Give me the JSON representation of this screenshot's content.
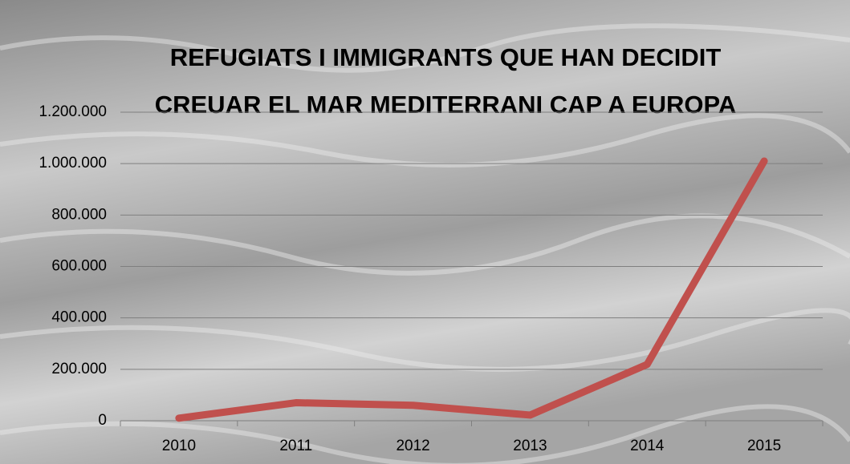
{
  "chart_data": {
    "type": "line",
    "title": [
      "REFUGIATS I IMMIGRANTS QUE HAN DECIDIT",
      "CREUAR EL MAR  MEDITERRANI CAP A EUROPA"
    ],
    "categories": [
      "2010",
      "2011",
      "2012",
      "2013",
      "2014",
      "2015"
    ],
    "values": [
      10000,
      70000,
      60000,
      22000,
      219000,
      1010000
    ],
    "color": "#c0504d",
    "ylim": [
      0,
      1200000
    ],
    "yticks": [
      0,
      {
        "value": 200000,
        "label": "200.000"
      },
      {
        "value": 400000,
        "label": "400.000"
      },
      {
        "value": 600000,
        "label": "600.000"
      },
      {
        "value": 800000,
        "label": "800.000"
      },
      {
        "value": 1000000,
        "label": "1.000.000"
      },
      {
        "value": 1200000,
        "label": "1.200.000"
      }
    ],
    "grid": true
  }
}
